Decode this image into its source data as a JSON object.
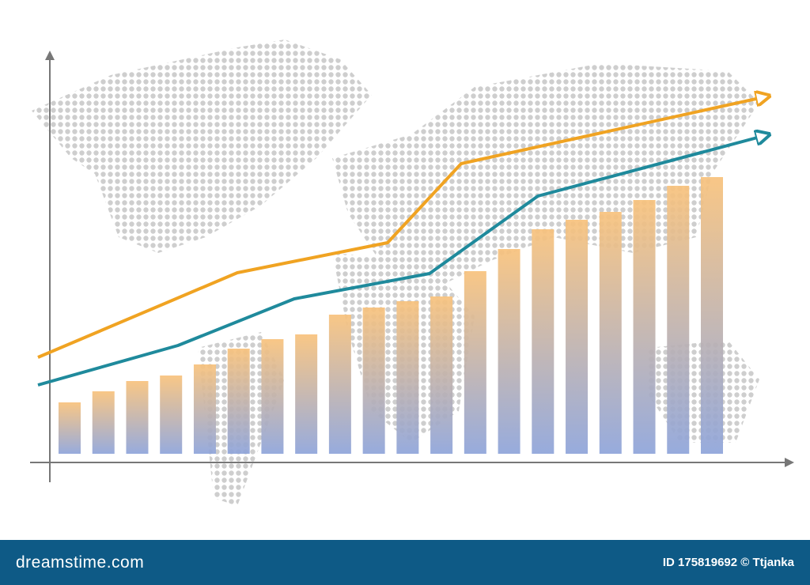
{
  "chart_data": {
    "type": "bar",
    "categories": [
      null,
      null,
      null,
      null,
      null,
      null,
      null,
      null,
      null,
      null,
      null,
      null,
      null,
      null,
      null,
      null,
      null,
      null,
      null,
      null
    ],
    "values": [
      65,
      79,
      92,
      99,
      113,
      133,
      145,
      151,
      176,
      185,
      193,
      199,
      231,
      259,
      284,
      296,
      306,
      321,
      339,
      350
    ],
    "color": "#f8c27c",
    "color_bottom": "#8ea4da",
    "ylim": [
      0,
      510
    ],
    "xlim": [
      0,
      1024
    ],
    "lines": [
      {
        "color": "#f0a322",
        "x": [
          48,
          300,
          490,
          583,
          965
        ],
        "values": [
          122,
          229,
          267,
          367,
          451
        ]
      },
      {
        "color": "#1f8a9c",
        "x": [
          48,
          225,
          372,
          543,
          680,
          965
        ],
        "values": [
          87,
          137,
          196,
          228,
          326,
          402
        ]
      }
    ]
  },
  "footer": {
    "brand": "dreamstime.com",
    "credit": "ID 175819692 © Ttjanka"
  }
}
